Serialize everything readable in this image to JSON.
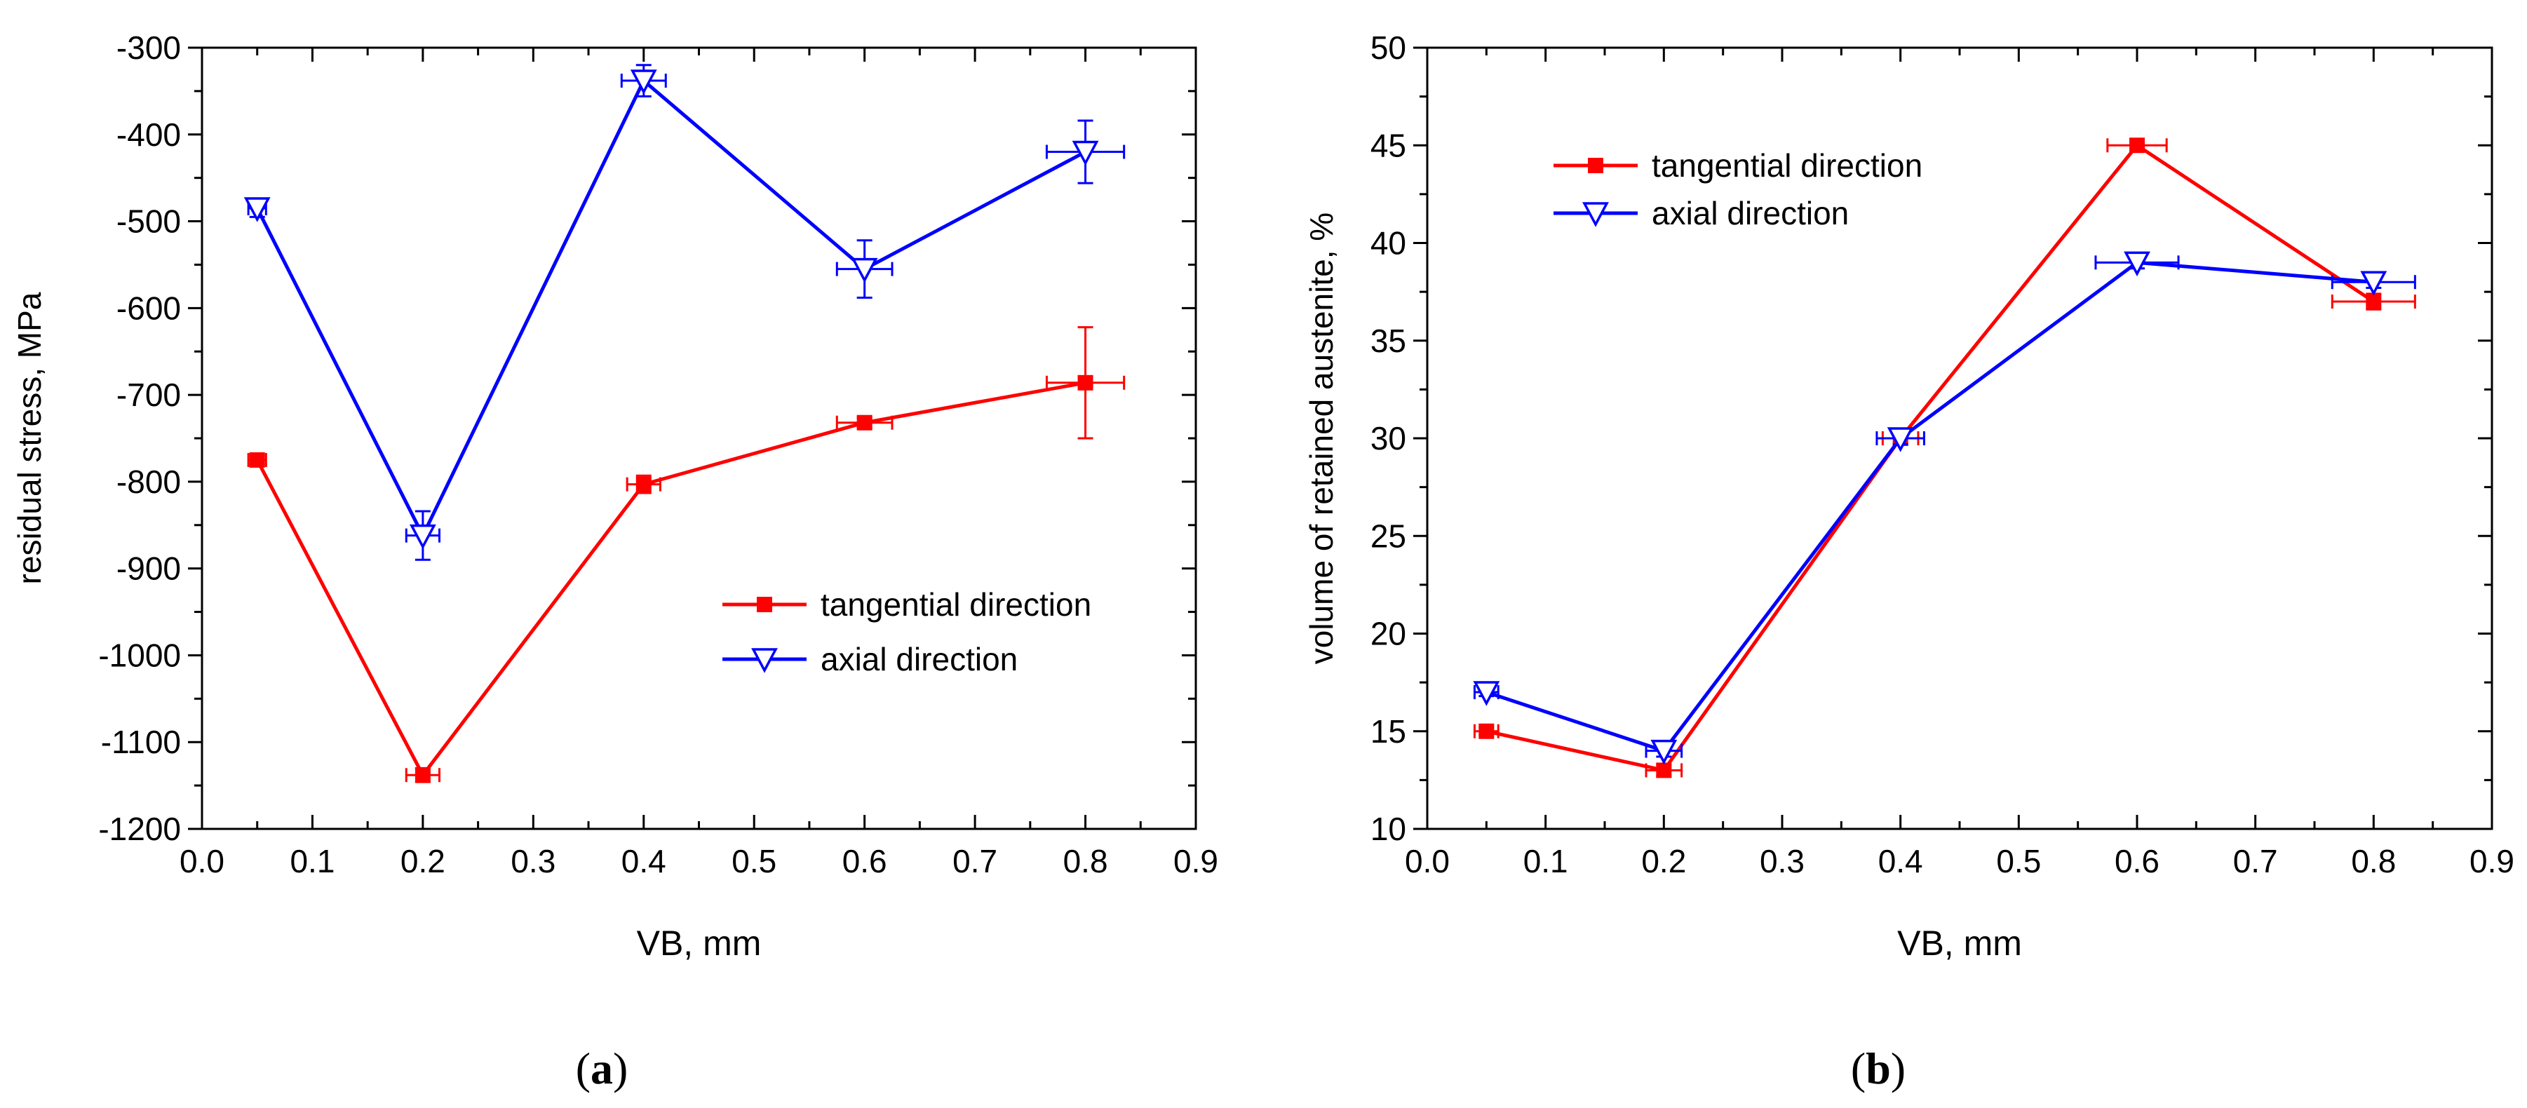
{
  "chart_data": [
    {
      "type": "line",
      "panel_label": "a",
      "xlabel": "VB, mm",
      "ylabel": "residual stress, MPa",
      "xlim": [
        0.0,
        0.9
      ],
      "ylim": [
        -1200,
        -300
      ],
      "xticks": [
        "0.0",
        "0.1",
        "0.2",
        "0.3",
        "0.4",
        "0.5",
        "0.6",
        "0.7",
        "0.8",
        "0.9"
      ],
      "yticks": [
        "-1200",
        "-1100",
        "-1000",
        "-900",
        "-800",
        "-700",
        "-600",
        "-500",
        "-400",
        "-300"
      ],
      "legend_position": "bottom-right",
      "series": [
        {
          "name": "tangential direction",
          "color": "#ff0000",
          "marker": "filled-square",
          "x": [
            0.05,
            0.2,
            0.4,
            0.6,
            0.8
          ],
          "y": [
            -775,
            -1138,
            -803,
            -732,
            -686
          ],
          "xerr": [
            0.008,
            0.015,
            0.015,
            0.025,
            0.035
          ],
          "yerr": [
            5,
            8,
            10,
            6,
            64
          ]
        },
        {
          "name": "axial direction",
          "color": "#0000ff",
          "marker": "open-triangle-down",
          "x": [
            0.05,
            0.2,
            0.4,
            0.6,
            0.8
          ],
          "y": [
            -485,
            -862,
            -338,
            -555,
            -420
          ],
          "xerr": [
            0.008,
            0.015,
            0.02,
            0.025,
            0.035
          ],
          "yerr": [
            10,
            28,
            18,
            33,
            36
          ]
        }
      ]
    },
    {
      "type": "line",
      "panel_label": "b",
      "xlabel": "VB, mm",
      "ylabel": "volume of retained austenite, %",
      "xlim": [
        0.0,
        0.9
      ],
      "ylim": [
        10,
        50
      ],
      "xticks": [
        "0.0",
        "0.1",
        "0.2",
        "0.3",
        "0.4",
        "0.5",
        "0.6",
        "0.7",
        "0.8",
        "0.9"
      ],
      "yticks": [
        "10",
        "15",
        "20",
        "25",
        "30",
        "35",
        "40",
        "45",
        "50"
      ],
      "legend_position": "top-left",
      "series": [
        {
          "name": "tangential direction",
          "color": "#ff0000",
          "marker": "filled-square",
          "x": [
            0.05,
            0.2,
            0.4,
            0.6,
            0.8
          ],
          "y": [
            15,
            13,
            30,
            45,
            37
          ],
          "xerr": [
            0.01,
            0.015,
            0.015,
            0.025,
            0.035
          ],
          "yerr": [
            0.2,
            0.3,
            0.3,
            0.3,
            0.4
          ]
        },
        {
          "name": "axial direction",
          "color": "#0000ff",
          "marker": "open-triangle-down",
          "x": [
            0.05,
            0.2,
            0.4,
            0.6,
            0.8
          ],
          "y": [
            17,
            14,
            30,
            39,
            38
          ],
          "xerr": [
            0.01,
            0.015,
            0.02,
            0.035,
            0.035
          ],
          "yerr": [
            0.2,
            0.3,
            0.3,
            0.3,
            0.3
          ]
        }
      ]
    }
  ]
}
